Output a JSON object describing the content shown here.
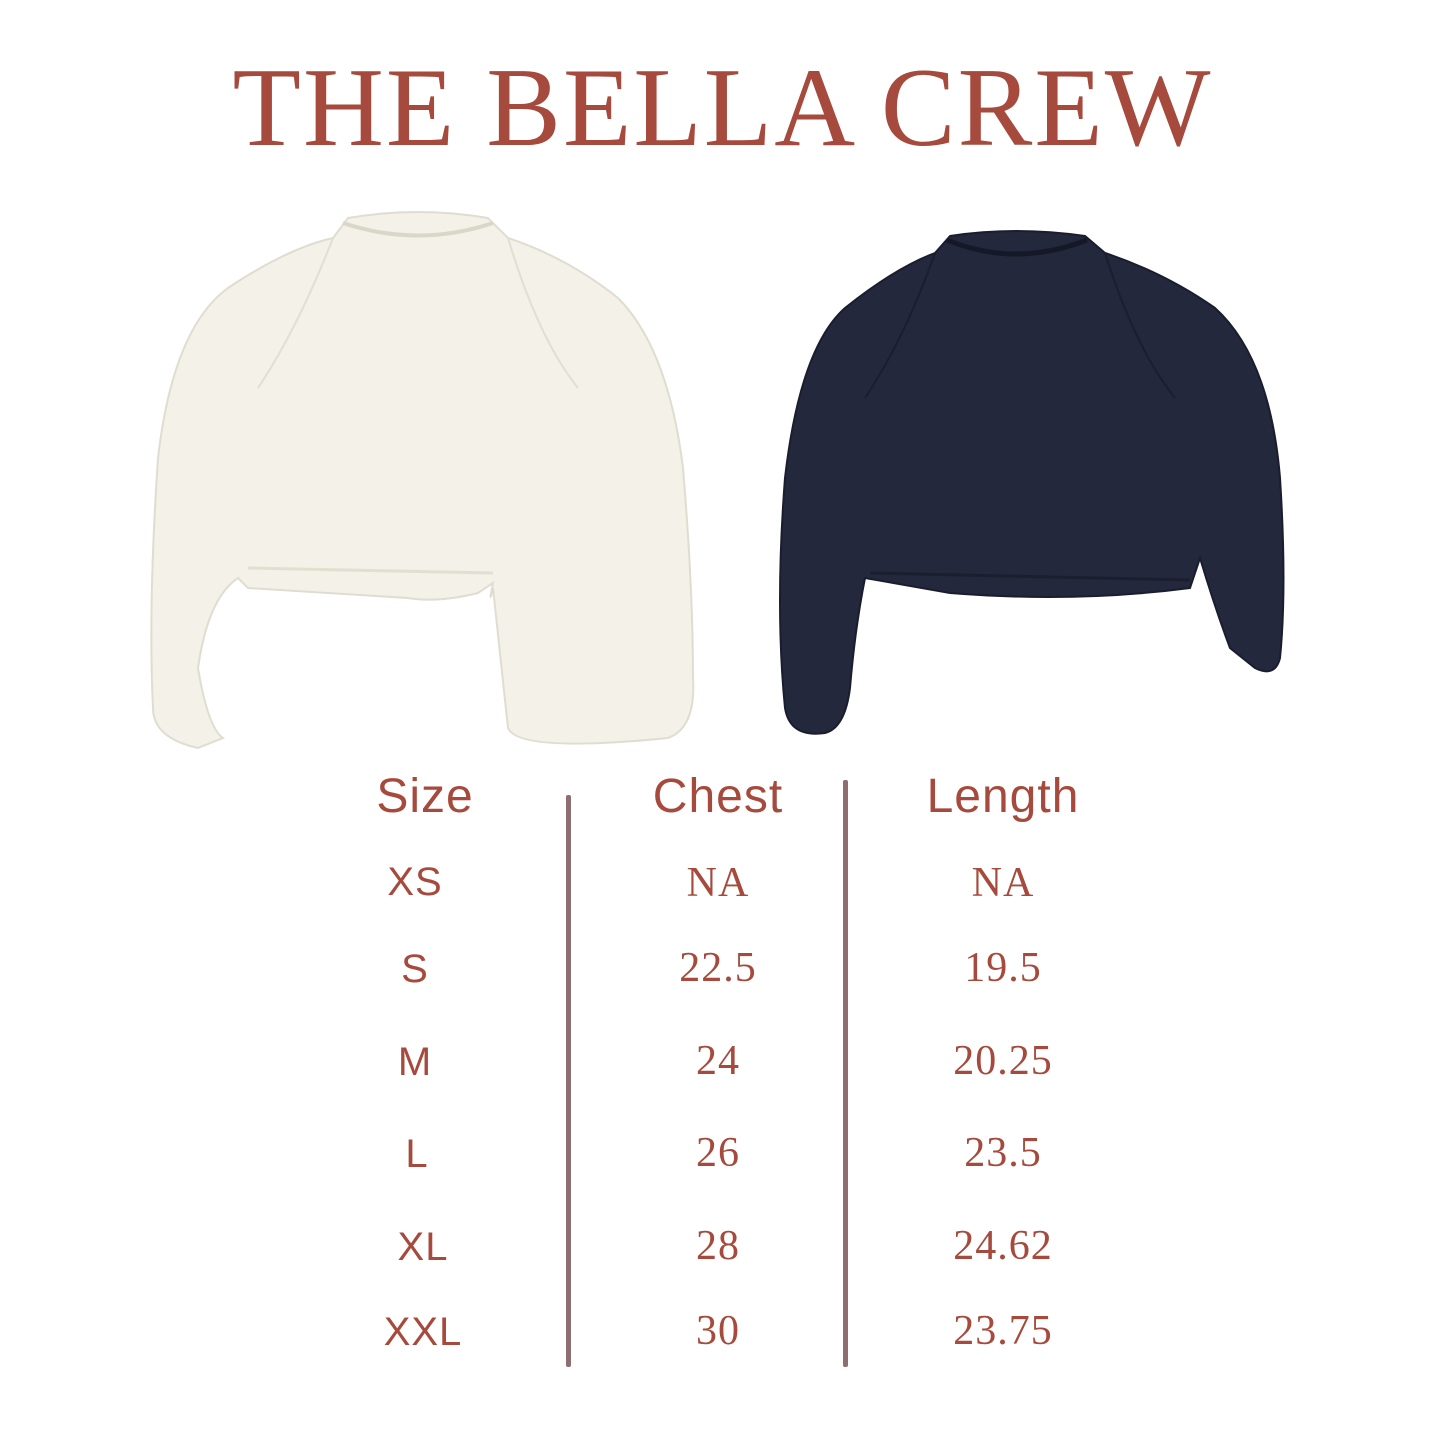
{
  "title": "THE BELLA CREW",
  "colors": {
    "text": "#a54a3c",
    "divider": "#8e6e70",
    "cream": "#f3f1e8",
    "navy": "#24283d"
  },
  "products": [
    {
      "name": "cream-sweatshirt",
      "color": "#f3f1e8"
    },
    {
      "name": "navy-sweatshirt",
      "color": "#24283d"
    }
  ],
  "table": {
    "headers": [
      "Size",
      "Chest",
      "Length"
    ],
    "rows": [
      [
        "XS",
        "NA",
        "NA"
      ],
      [
        "S",
        "22.5",
        "19.5"
      ],
      [
        "M",
        "24",
        "20.25"
      ],
      [
        "L",
        "26",
        "23.5"
      ],
      [
        "XL",
        "28",
        "24.62"
      ],
      [
        "XXL",
        "30",
        "23.75"
      ]
    ]
  }
}
